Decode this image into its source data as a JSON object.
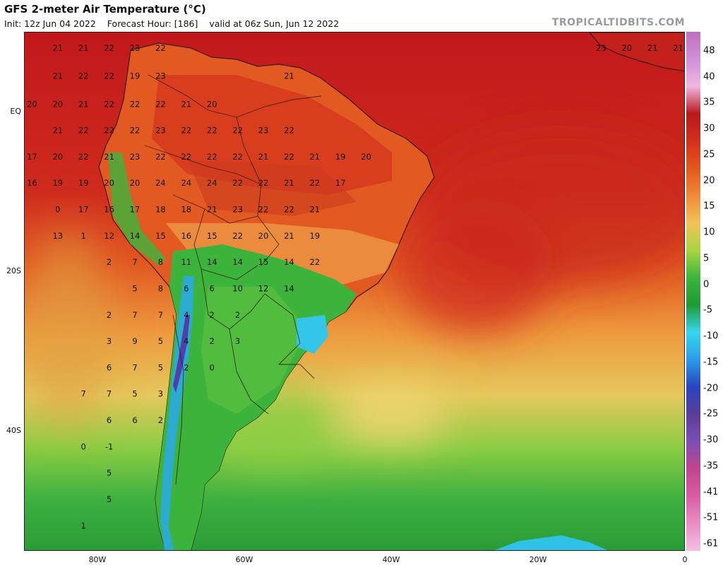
{
  "header": {
    "title": "GFS 2-meter Air Temperature (°C)",
    "init": "Init: 12z Jun 04 2022",
    "forecast_hour": "Forecast Hour: [186]",
    "valid": "valid at 06z Sun, Jun 12 2022",
    "credit": "TROPICALTIDBITS.COM"
  },
  "axes": {
    "lat_labels": [
      {
        "text": "EQ",
        "lat": 0
      },
      {
        "text": "20S",
        "lat": -20
      },
      {
        "text": "40S",
        "lat": -40
      }
    ],
    "lon_labels": [
      {
        "text": "80W",
        "lon": -80
      },
      {
        "text": "60W",
        "lon": -60
      },
      {
        "text": "40W",
        "lon": -40
      },
      {
        "text": "20W",
        "lon": -20
      },
      {
        "text": "0",
        "lon": 0
      }
    ]
  },
  "colorbar": {
    "labels": [
      "48",
      "40",
      "35",
      "30",
      "25",
      "20",
      "15",
      "10",
      "5",
      "0",
      "-5",
      "-10",
      "-15",
      "-20",
      "-25",
      "-30",
      "-35",
      "-41",
      "-51",
      "-61"
    ],
    "colors": [
      "#c06fc0",
      "#d28fd8",
      "#f0b6e0",
      "#b8181a",
      "#d3301c",
      "#e3581f",
      "#ef8a36",
      "#f4c25c",
      "#a7d542",
      "#3cb43c",
      "#1f9a32",
      "#36d6ef",
      "#2c9ae8",
      "#2846bf",
      "#5a3d9a",
      "#7d4fb4",
      "#c0448f",
      "#d95ca5",
      "#ea8ec4",
      "#f2c0e0"
    ]
  },
  "map": {
    "bounds": {
      "lon_min": -90,
      "lon_max": 0,
      "lat_min": -55,
      "lat_max": 10
    },
    "temperature_labels": [
      {
        "t": "21",
        "lon": -85.5,
        "lat": 8
      },
      {
        "t": "21",
        "lon": -82,
        "lat": 8
      },
      {
        "t": "22",
        "lon": -78.5,
        "lat": 8
      },
      {
        "t": "23",
        "lon": -75,
        "lat": 8
      },
      {
        "t": "22",
        "lon": -71.5,
        "lat": 8
      },
      {
        "t": "21",
        "lon": -85.5,
        "lat": 4.5
      },
      {
        "t": "22",
        "lon": -82,
        "lat": 4.5
      },
      {
        "t": "22",
        "lon": -78.5,
        "lat": 4.5
      },
      {
        "t": "19",
        "lon": -75,
        "lat": 4.5
      },
      {
        "t": "23",
        "lon": -71.5,
        "lat": 4.5
      },
      {
        "t": "21",
        "lon": -54,
        "lat": 4.5
      },
      {
        "t": "20",
        "lon": -89,
        "lat": 1
      },
      {
        "t": "20",
        "lon": -85.5,
        "lat": 1
      },
      {
        "t": "21",
        "lon": -82,
        "lat": 1
      },
      {
        "t": "22",
        "lon": -78.5,
        "lat": 1
      },
      {
        "t": "22",
        "lon": -75,
        "lat": 1
      },
      {
        "t": "22",
        "lon": -71.5,
        "lat": 1
      },
      {
        "t": "21",
        "lon": -68,
        "lat": 1
      },
      {
        "t": "20",
        "lon": -64.5,
        "lat": 1
      },
      {
        "t": "21",
        "lon": -85.5,
        "lat": -2.3
      },
      {
        "t": "22",
        "lon": -82,
        "lat": -2.3
      },
      {
        "t": "22",
        "lon": -78.5,
        "lat": -2.3
      },
      {
        "t": "22",
        "lon": -75,
        "lat": -2.3
      },
      {
        "t": "23",
        "lon": -71.5,
        "lat": -2.3
      },
      {
        "t": "22",
        "lon": -68,
        "lat": -2.3
      },
      {
        "t": "22",
        "lon": -64.5,
        "lat": -2.3
      },
      {
        "t": "22",
        "lon": -61,
        "lat": -2.3
      },
      {
        "t": "23",
        "lon": -57.5,
        "lat": -2.3
      },
      {
        "t": "22",
        "lon": -54,
        "lat": -2.3
      },
      {
        "t": "17",
        "lon": -89,
        "lat": -5.6
      },
      {
        "t": "20",
        "lon": -85.5,
        "lat": -5.6
      },
      {
        "t": "22",
        "lon": -82,
        "lat": -5.6
      },
      {
        "t": "21",
        "lon": -78.5,
        "lat": -5.6
      },
      {
        "t": "23",
        "lon": -75,
        "lat": -5.6
      },
      {
        "t": "22",
        "lon": -71.5,
        "lat": -5.6
      },
      {
        "t": "22",
        "lon": -68,
        "lat": -5.6
      },
      {
        "t": "22",
        "lon": -64.5,
        "lat": -5.6
      },
      {
        "t": "22",
        "lon": -61,
        "lat": -5.6
      },
      {
        "t": "21",
        "lon": -57.5,
        "lat": -5.6
      },
      {
        "t": "22",
        "lon": -54,
        "lat": -5.6
      },
      {
        "t": "21",
        "lon": -50.5,
        "lat": -5.6
      },
      {
        "t": "19",
        "lon": -47,
        "lat": -5.6
      },
      {
        "t": "20",
        "lon": -43.5,
        "lat": -5.6
      },
      {
        "t": "16",
        "lon": -89,
        "lat": -8.9
      },
      {
        "t": "19",
        "lon": -85.5,
        "lat": -8.9
      },
      {
        "t": "19",
        "lon": -82,
        "lat": -8.9
      },
      {
        "t": "20",
        "lon": -78.5,
        "lat": -8.9
      },
      {
        "t": "20",
        "lon": -75,
        "lat": -8.9
      },
      {
        "t": "24",
        "lon": -71.5,
        "lat": -8.9
      },
      {
        "t": "24",
        "lon": -68,
        "lat": -8.9
      },
      {
        "t": "24",
        "lon": -64.5,
        "lat": -8.9
      },
      {
        "t": "22",
        "lon": -61,
        "lat": -8.9
      },
      {
        "t": "22",
        "lon": -57.5,
        "lat": -8.9
      },
      {
        "t": "21",
        "lon": -54,
        "lat": -8.9
      },
      {
        "t": "22",
        "lon": -50.5,
        "lat": -8.9
      },
      {
        "t": "17",
        "lon": -47,
        "lat": -8.9
      },
      {
        "t": "0",
        "lon": -85.5,
        "lat": -12.2
      },
      {
        "t": "17",
        "lon": -82,
        "lat": -12.2
      },
      {
        "t": "16",
        "lon": -78.5,
        "lat": -12.2
      },
      {
        "t": "17",
        "lon": -75,
        "lat": -12.2
      },
      {
        "t": "18",
        "lon": -71.5,
        "lat": -12.2
      },
      {
        "t": "18",
        "lon": -68,
        "lat": -12.2
      },
      {
        "t": "21",
        "lon": -64.5,
        "lat": -12.2
      },
      {
        "t": "23",
        "lon": -61,
        "lat": -12.2
      },
      {
        "t": "22",
        "lon": -57.5,
        "lat": -12.2
      },
      {
        "t": "22",
        "lon": -54,
        "lat": -12.2
      },
      {
        "t": "21",
        "lon": -50.5,
        "lat": -12.2
      },
      {
        "t": "13",
        "lon": -85.5,
        "lat": -15.5
      },
      {
        "t": "1",
        "lon": -82,
        "lat": -15.5
      },
      {
        "t": "12",
        "lon": -78.5,
        "lat": -15.5
      },
      {
        "t": "14",
        "lon": -75,
        "lat": -15.5
      },
      {
        "t": "15",
        "lon": -71.5,
        "lat": -15.5
      },
      {
        "t": "16",
        "lon": -68,
        "lat": -15.5
      },
      {
        "t": "15",
        "lon": -64.5,
        "lat": -15.5
      },
      {
        "t": "22",
        "lon": -61,
        "lat": -15.5
      },
      {
        "t": "20",
        "lon": -57.5,
        "lat": -15.5
      },
      {
        "t": "21",
        "lon": -54,
        "lat": -15.5
      },
      {
        "t": "19",
        "lon": -50.5,
        "lat": -15.5
      },
      {
        "t": "2",
        "lon": -78.5,
        "lat": -18.8
      },
      {
        "t": "7",
        "lon": -75,
        "lat": -18.8
      },
      {
        "t": "8",
        "lon": -71.5,
        "lat": -18.8
      },
      {
        "t": "11",
        "lon": -68,
        "lat": -18.8
      },
      {
        "t": "14",
        "lon": -64.5,
        "lat": -18.8
      },
      {
        "t": "14",
        "lon": -61,
        "lat": -18.8
      },
      {
        "t": "15",
        "lon": -57.5,
        "lat": -18.8
      },
      {
        "t": "14",
        "lon": -54,
        "lat": -18.8
      },
      {
        "t": "22",
        "lon": -50.5,
        "lat": -18.8
      },
      {
        "t": "5",
        "lon": -75,
        "lat": -22.1
      },
      {
        "t": "8",
        "lon": -71.5,
        "lat": -22.1
      },
      {
        "t": "6",
        "lon": -68,
        "lat": -22.1
      },
      {
        "t": "6",
        "lon": -64.5,
        "lat": -22.1
      },
      {
        "t": "10",
        "lon": -61,
        "lat": -22.1
      },
      {
        "t": "12",
        "lon": -57.5,
        "lat": -22.1
      },
      {
        "t": "14",
        "lon": -54,
        "lat": -22.1
      },
      {
        "t": "2",
        "lon": -78.5,
        "lat": -25.4
      },
      {
        "t": "7",
        "lon": -75,
        "lat": -25.4
      },
      {
        "t": "7",
        "lon": -71.5,
        "lat": -25.4
      },
      {
        "t": "4",
        "lon": -68,
        "lat": -25.4
      },
      {
        "t": "2",
        "lon": -64.5,
        "lat": -25.4
      },
      {
        "t": "2",
        "lon": -61,
        "lat": -25.4
      },
      {
        "t": "3",
        "lon": -78.5,
        "lat": -28.7
      },
      {
        "t": "9",
        "lon": -75,
        "lat": -28.7
      },
      {
        "t": "5",
        "lon": -71.5,
        "lat": -28.7
      },
      {
        "t": "4",
        "lon": -68,
        "lat": -28.7
      },
      {
        "t": "2",
        "lon": -64.5,
        "lat": -28.7
      },
      {
        "t": "3",
        "lon": -61,
        "lat": -28.7
      },
      {
        "t": "6",
        "lon": -78.5,
        "lat": -32
      },
      {
        "t": "7",
        "lon": -75,
        "lat": -32
      },
      {
        "t": "5",
        "lon": -71.5,
        "lat": -32
      },
      {
        "t": "2",
        "lon": -68,
        "lat": -32
      },
      {
        "t": "0",
        "lon": -64.5,
        "lat": -32
      },
      {
        "t": "7",
        "lon": -82,
        "lat": -35.3
      },
      {
        "t": "7",
        "lon": -78.5,
        "lat": -35.3
      },
      {
        "t": "5",
        "lon": -75,
        "lat": -35.3
      },
      {
        "t": "3",
        "lon": -71.5,
        "lat": -35.3
      },
      {
        "t": "6",
        "lon": -78.5,
        "lat": -38.6
      },
      {
        "t": "6",
        "lon": -75,
        "lat": -38.6
      },
      {
        "t": "2",
        "lon": -71.5,
        "lat": -38.6
      },
      {
        "t": "0",
        "lon": -82,
        "lat": -41.9
      },
      {
        "t": "-1",
        "lon": -78.5,
        "lat": -41.9
      },
      {
        "t": "5",
        "lon": -78.5,
        "lat": -45.2
      },
      {
        "t": "5",
        "lon": -78.5,
        "lat": -48.5
      },
      {
        "t": "1",
        "lon": -82,
        "lat": -51.8
      },
      {
        "t": "23",
        "lon": -11.5,
        "lat": 8
      },
      {
        "t": "20",
        "lon": -8,
        "lat": 8
      },
      {
        "t": "21",
        "lon": -4.5,
        "lat": 8
      },
      {
        "t": "21",
        "lon": -1,
        "lat": 8
      }
    ]
  }
}
